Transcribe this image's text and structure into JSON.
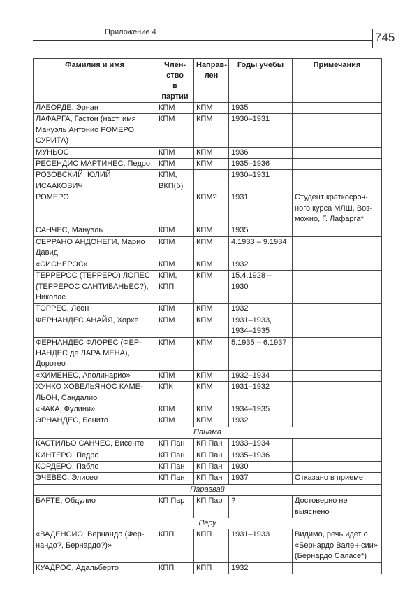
{
  "header": {
    "running_title": "Приложение 4",
    "page_number": "745"
  },
  "table": {
    "columns": [
      "Фамилия и имя",
      "Член-ство в партии",
      "Направ-лен",
      "Годы учебы",
      "Примечания"
    ],
    "rows": [
      {
        "name": "ЛАБОРДЕ, Эрнан",
        "member": "КПМ",
        "sent": "КПМ",
        "years": "1935",
        "note": ""
      },
      {
        "name": "ЛАФАРГА, Гастон (наст. имя Мануэль Антонио РОМЕРО СУРИТА)",
        "member": "КПМ",
        "sent": "КПМ",
        "years": "1930–1931",
        "note": ""
      },
      {
        "name": "МУНЬОС",
        "member": "КПМ",
        "sent": "КПМ",
        "years": "1936",
        "note": ""
      },
      {
        "name": "РЕСЕНДИС МАРТИНЕС, Педро",
        "member": "КПМ",
        "sent": "КПМ",
        "years": "1935–1936",
        "note": ""
      },
      {
        "name": "РОЗОВСКИЙ, ЮЛИЙ ИСААКОВИЧ",
        "member": "КПМ, ВКП(б)",
        "sent": "",
        "years": "1930–1931",
        "note": ""
      },
      {
        "name": "РОМЕРО",
        "member": "",
        "sent": "КПМ?",
        "years": "1931",
        "note": "Студент краткосроч-ного курса МЛШ. Воз-можно, Г. Лафарга*"
      },
      {
        "name": "САНЧЕС, Мануэль",
        "member": "КПМ",
        "sent": "КПМ",
        "years": "1935",
        "note": ""
      },
      {
        "name": "СЕРРАНО АНДОНЕГИ, Марио Давид",
        "member": "КПМ",
        "sent": "КПМ",
        "years": "4.1933 – 9.1934",
        "note": ""
      },
      {
        "name": "«СИСНЕРОС»",
        "member": "КПМ",
        "sent": "КПМ",
        "years": "1932",
        "note": ""
      },
      {
        "name": "ТЕРРЕРОС (ТЕРРЕРО) ЛОПЕС (ТЕРРЕРОС САНТИБАНЬЕС?), Николас",
        "member": "КПМ, КПП",
        "sent": "КПМ",
        "years": "15.4.1928 – 1930",
        "note": ""
      },
      {
        "name": "ТОРРЕС, Леон",
        "member": "КПМ",
        "sent": "КПМ",
        "years": "1932",
        "note": ""
      },
      {
        "name": "ФЕРНАНДЕС АНАЙЯ, Хорхе",
        "member": "КПМ",
        "sent": "КПМ",
        "years": "1931–1933, 1934–1935",
        "note": ""
      },
      {
        "name": "ФЕРНАНДЕС ФЛОРЕС (ФЕР-НАНДЕС де ЛАРА МЕНА), Доротео",
        "member": "КПМ",
        "sent": "КПМ",
        "years": "5.1935 – 6.1937",
        "note": ""
      },
      {
        "name": "«ХИМЕНЕС, Аполинарио»",
        "member": "КПМ",
        "sent": "КПМ",
        "years": "1932–1934",
        "note": ""
      },
      {
        "name": "ХУНКО ХОВЕЛЬЯНОС КАМЕ-ЛЬОН, Сандалио",
        "member": "КПК",
        "sent": "КПМ",
        "years": "1931–1932",
        "note": ""
      },
      {
        "name": "«ЧАКА, Фулини»",
        "member": "КПМ",
        "sent": "КПМ",
        "years": "1934–1935",
        "note": ""
      },
      {
        "name": "ЭРНАНДЕС, Бенито",
        "member": "КПМ",
        "sent": "КПМ",
        "years": "1932",
        "note": ""
      },
      {
        "section": "Панама"
      },
      {
        "name": "КАСТИЛЬО САНЧЕС, Висенте",
        "member": "КП Пан",
        "sent": "КП Пан",
        "years": "1933–1934",
        "note": ""
      },
      {
        "name": "КИНТЕРО, Педро",
        "member": "КП Пан",
        "sent": "КП Пан",
        "years": "1935–1936",
        "note": ""
      },
      {
        "name": "КОРДЕРО, Пабло",
        "member": "КП Пан",
        "sent": "КП Пан",
        "years": "1930",
        "note": ""
      },
      {
        "name": "ЭЧЕВЕС, Элисео",
        "member": "КП Пан",
        "sent": "КП Пан",
        "years": "1937",
        "note": "Отказано в приеме"
      },
      {
        "section": "Парагвай"
      },
      {
        "name": "БАРТЕ, Обдулио",
        "member": "КП Пар",
        "sent": "КП Пар",
        "years": "?",
        "note": "Достоверно не выяснено"
      },
      {
        "section": "Перу"
      },
      {
        "name": "«ВАДЕНСИО, Вернандо (Фер-нандо?, Бернардо?)»",
        "member": "КПП",
        "sent": "КПП",
        "years": "1931–1933",
        "note": "Видимо, речь идет о «Бернардо Вален-сии» (Бернардо Саласе*)"
      },
      {
        "name": "КУАДРОС, Адальберто",
        "member": "КПП",
        "sent": "КПП",
        "years": "1932",
        "note": ""
      }
    ]
  }
}
